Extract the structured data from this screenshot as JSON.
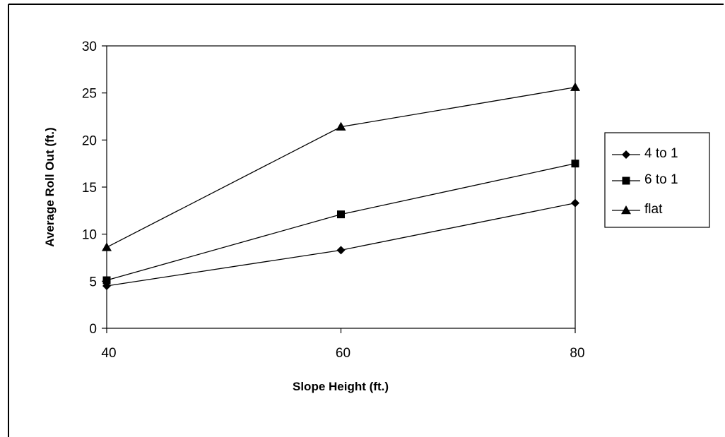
{
  "chart_data": {
    "type": "line",
    "xlabel": "Slope Height (ft.)",
    "ylabel": "Average Roll Out (ft.)",
    "x": [
      40,
      60,
      80
    ],
    "xlim": [
      40,
      80
    ],
    "ylim": [
      0,
      30
    ],
    "xticks": [
      40,
      60,
      80
    ],
    "yticks": [
      0,
      5,
      10,
      15,
      20,
      25,
      30
    ],
    "grid": false,
    "legend_position": "right",
    "series": [
      {
        "name": "4 to 1",
        "marker": "diamond",
        "values": [
          4.5,
          8.3,
          13.3
        ]
      },
      {
        "name": "6 to 1",
        "marker": "square",
        "values": [
          5.1,
          12.1,
          17.5
        ]
      },
      {
        "name": "flat",
        "marker": "triangle",
        "values": [
          8.6,
          21.4,
          25.6
        ]
      }
    ],
    "colors": {
      "line": "#000000",
      "background": "#ffffff"
    }
  }
}
